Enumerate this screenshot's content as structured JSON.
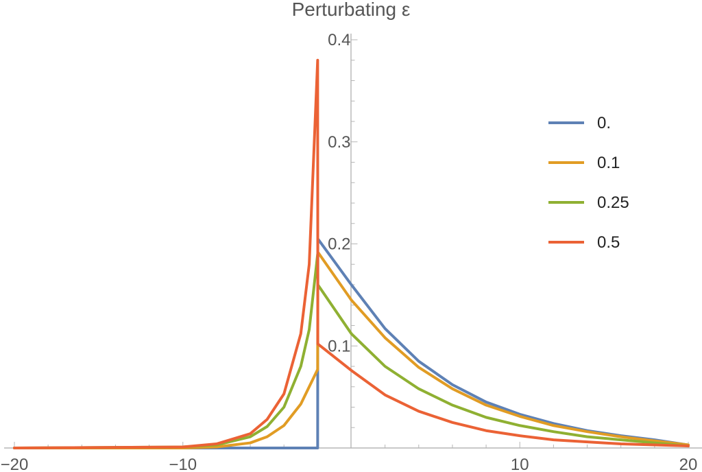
{
  "chart_data": {
    "type": "line",
    "title": "Perturbating ε",
    "xlim": [
      -20,
      20
    ],
    "ylim": [
      0,
      0.4
    ],
    "x_ticks": [
      -20,
      -10,
      10,
      20
    ],
    "x_tick_labels": [
      "−20",
      "−10",
      "10",
      "20"
    ],
    "y_ticks": [
      0.1,
      0.2,
      0.3,
      0.4
    ],
    "y_tick_labels": [
      "0.1",
      "0.2",
      "0.3",
      "0.4"
    ],
    "grid": false,
    "legend_position": "right",
    "series": [
      {
        "name": "0.",
        "color": "#5e81b5",
        "x": [
          -20,
          -2.0,
          -1.99,
          0,
          2,
          4,
          6,
          8,
          10,
          12,
          14,
          16,
          18,
          20
        ],
        "y": [
          0,
          0,
          0.205,
          0.16,
          0.117,
          0.085,
          0.062,
          0.045,
          0.033,
          0.024,
          0.017,
          0.012,
          0.008,
          0.003
        ]
      },
      {
        "name": "0.1",
        "color": "#e19c24",
        "x": [
          -20,
          -10,
          -8,
          -6,
          -5,
          -4,
          -3,
          -2.5,
          -2.0,
          -1.99,
          0,
          2,
          4,
          6,
          8,
          10,
          12,
          14,
          16,
          18,
          20
        ],
        "y": [
          0,
          0,
          0.001,
          0.005,
          0.011,
          0.022,
          0.043,
          0.06,
          0.077,
          0.192,
          0.145,
          0.108,
          0.079,
          0.058,
          0.042,
          0.031,
          0.022,
          0.016,
          0.011,
          0.007,
          0.003
        ]
      },
      {
        "name": "0.25",
        "color": "#8fb032",
        "x": [
          -20,
          -10,
          -8,
          -6,
          -5,
          -4,
          -3,
          -2.5,
          -2.0,
          -1.99,
          0,
          2,
          4,
          6,
          8,
          10,
          12,
          14,
          16,
          18,
          20
        ],
        "y": [
          0,
          0.001,
          0.003,
          0.011,
          0.021,
          0.04,
          0.08,
          0.116,
          0.19,
          0.16,
          0.112,
          0.08,
          0.058,
          0.042,
          0.03,
          0.022,
          0.016,
          0.011,
          0.008,
          0.005,
          0.002
        ]
      },
      {
        "name": "0.5",
        "color": "#eb6235",
        "x": [
          -20,
          -10,
          -8,
          -6,
          -5,
          -4,
          -3,
          -2.5,
          -2.0,
          -1.99,
          0,
          2,
          4,
          6,
          8,
          10,
          12,
          14,
          16,
          18,
          20
        ],
        "y": [
          0,
          0.001,
          0.004,
          0.014,
          0.028,
          0.053,
          0.112,
          0.18,
          0.38,
          0.102,
          0.076,
          0.052,
          0.036,
          0.025,
          0.017,
          0.012,
          0.008,
          0.006,
          0.004,
          0.003,
          0.002
        ]
      }
    ]
  }
}
